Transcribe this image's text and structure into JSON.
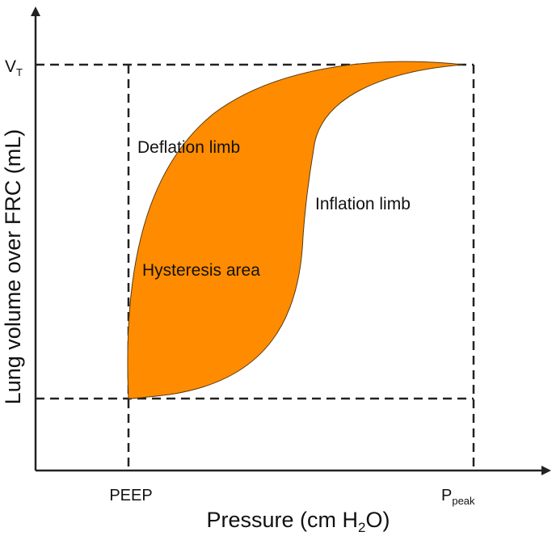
{
  "diagram": {
    "y_axis_label": "Lung volume over FRC (mL)",
    "x_axis_label_prefix": "Pressure (cm H",
    "x_axis_label_sub": "2",
    "x_axis_label_suffix": "O)",
    "y_tick_vt_main": "V",
    "y_tick_vt_sub": "T",
    "x_tick_peep": "PEEP",
    "x_tick_ppeak_main": "P",
    "x_tick_ppeak_sub": "peak",
    "deflation_label": "Deflation limb",
    "inflation_label": "Inflation limb",
    "hysteresis_label": "Hysteresis area",
    "loop_fill_color": "#ff8c00",
    "axis_color": "#222222"
  }
}
